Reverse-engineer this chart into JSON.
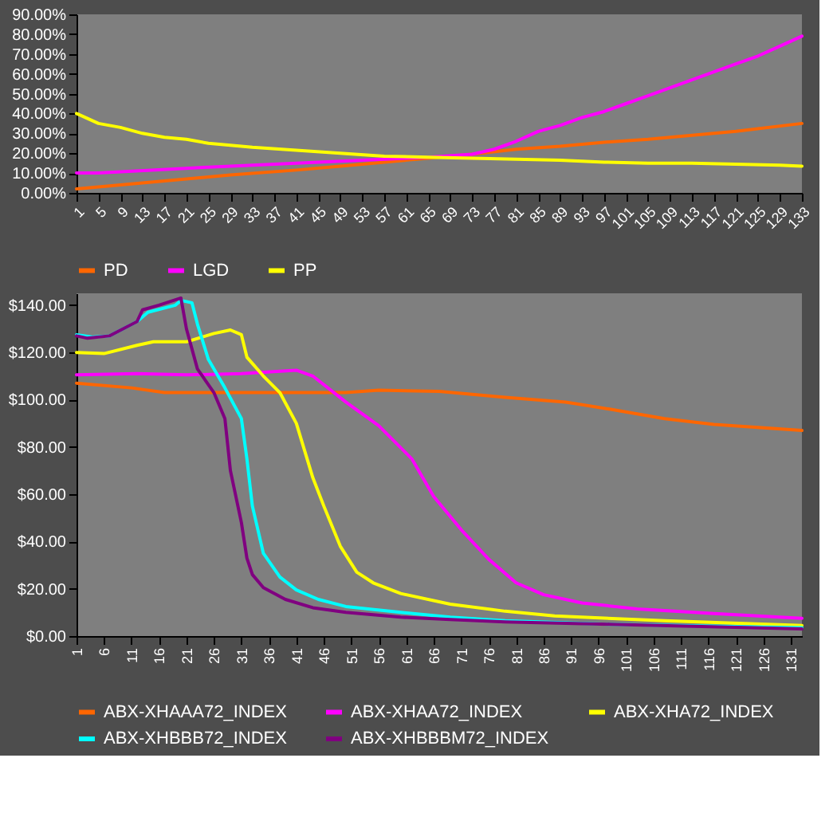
{
  "chart_data": [
    {
      "type": "line",
      "legend": "bottom",
      "grid": false,
      "marker": "none",
      "line_style": "solid",
      "xlim": [
        1,
        133
      ],
      "xticks": [
        1,
        5,
        9,
        13,
        17,
        21,
        25,
        29,
        33,
        37,
        41,
        45,
        49,
        53,
        57,
        61,
        65,
        69,
        73,
        77,
        81,
        85,
        89,
        93,
        97,
        101,
        105,
        109,
        113,
        117,
        121,
        125,
        129,
        133
      ],
      "ylim": [
        0,
        90
      ],
      "yticks": [
        {
          "value": 0,
          "label": "0.00%"
        },
        {
          "value": 10,
          "label": "10.00%"
        },
        {
          "value": 20,
          "label": "20.00%"
        },
        {
          "value": 30,
          "label": "30.00%"
        },
        {
          "value": 40,
          "label": "40.00%"
        },
        {
          "value": 50,
          "label": "50.00%"
        },
        {
          "value": 60,
          "label": "60.00%"
        },
        {
          "value": 70,
          "label": "70.00%"
        },
        {
          "value": 80,
          "label": "80.00%"
        },
        {
          "value": 90,
          "label": "90.00%"
        }
      ],
      "series": [
        {
          "name": "PD",
          "color": "#ff6600",
          "x": [
            1,
            5,
            13,
            25,
            29,
            41,
            49,
            57,
            65,
            73,
            81,
            89,
            97,
            105,
            113,
            121,
            133
          ],
          "values": [
            2,
            3,
            5,
            8,
            9,
            11.5,
            13.5,
            15.5,
            17.5,
            19.5,
            22,
            23.5,
            25.5,
            27,
            29,
            31,
            35
          ]
        },
        {
          "name": "LGD",
          "color": "#ff00ff",
          "x": [
            1,
            5,
            25,
            45,
            65,
            73,
            77,
            81,
            85,
            89,
            93,
            97,
            101,
            105,
            109,
            113,
            117,
            121,
            125,
            129,
            133
          ],
          "values": [
            10,
            10,
            13,
            15.5,
            18,
            19.5,
            22,
            26,
            31,
            34,
            38,
            41,
            45,
            49,
            53,
            57,
            61,
            65,
            69,
            74,
            79
          ]
        },
        {
          "name": "PP",
          "color": "#ffff00",
          "x": [
            1,
            5,
            9,
            13,
            17,
            21,
            25,
            33,
            41,
            49,
            57,
            65,
            73,
            81,
            89,
            97,
            105,
            113,
            121,
            129,
            133
          ],
          "values": [
            40,
            35,
            33,
            30,
            28,
            27,
            25,
            23,
            21.5,
            20,
            18.5,
            18,
            17.5,
            17,
            16.5,
            15.5,
            15,
            15,
            14.5,
            14,
            13.5
          ]
        }
      ]
    },
    {
      "type": "line",
      "legend": "bottom",
      "grid": false,
      "marker": "none",
      "line_style": "solid",
      "xlim": [
        1,
        133
      ],
      "xticks": [
        1,
        6,
        11,
        16,
        21,
        26,
        31,
        36,
        41,
        46,
        51,
        56,
        61,
        66,
        71,
        76,
        81,
        86,
        91,
        96,
        101,
        106,
        111,
        116,
        121,
        126,
        131
      ],
      "ylim": [
        0,
        145
      ],
      "yticks": [
        {
          "value": 0,
          "label": "$0.00"
        },
        {
          "value": 20,
          "label": "$20.00"
        },
        {
          "value": 40,
          "label": "$40.00"
        },
        {
          "value": 60,
          "label": "$60.00"
        },
        {
          "value": 80,
          "label": "$80.00"
        },
        {
          "value": 100,
          "label": "$100.00"
        },
        {
          "value": 120,
          "label": "$120.00"
        },
        {
          "value": 140,
          "label": "$140.00"
        }
      ],
      "series": [
        {
          "name": "ABX-XHAAA72_INDEX",
          "color": "#ff6600",
          "x": [
            1,
            11,
            17,
            50,
            56,
            67,
            79,
            90,
            98,
            108,
            117,
            133
          ],
          "values": [
            107,
            105,
            103,
            103,
            104,
            103.5,
            101,
            99,
            96,
            92,
            89.5,
            87
          ]
        },
        {
          "name": "ABX-XHAA72_INDEX",
          "color": "#ff00ff",
          "x": [
            1,
            12,
            21,
            31,
            41,
            44,
            50,
            56,
            62,
            66,
            71,
            76,
            81,
            86,
            93,
            103,
            117,
            133
          ],
          "values": [
            110.5,
            111,
            110.5,
            111,
            112.5,
            110,
            99,
            89,
            75,
            59,
            45,
            32.5,
            22.5,
            17.5,
            14,
            11.5,
            9.5,
            7.5
          ]
        },
        {
          "name": "ABX-XHA72_INDEX",
          "color": "#ffff00",
          "x": [
            1,
            6,
            12,
            15,
            21,
            26,
            29,
            31,
            32,
            35,
            38,
            41,
            44,
            46,
            49,
            52,
            55,
            60,
            69,
            79,
            88,
            108,
            133
          ],
          "values": [
            120,
            119.5,
            123,
            124.5,
            124.5,
            128,
            129.5,
            127.5,
            118,
            110,
            103,
            90,
            67,
            55,
            38,
            27,
            22.5,
            18,
            13.5,
            10.5,
            8.5,
            6.5,
            4.5
          ]
        },
        {
          "name": "ABX-XHBBB72_INDEX",
          "color": "#00ffff",
          "x": [
            1,
            4,
            7,
            12,
            14,
            19,
            20,
            22,
            23,
            25,
            28,
            31,
            32,
            33,
            35,
            38,
            41,
            45,
            50,
            60,
            69,
            79,
            98,
            133
          ],
          "values": [
            127.5,
            126.5,
            127,
            133,
            137,
            140,
            142,
            141,
            132,
            117,
            105,
            92,
            75,
            55,
            35,
            25,
            19.5,
            15.5,
            12.5,
            10,
            8,
            6.5,
            5,
            3.5
          ]
        },
        {
          "name": "ABX-XHBBBM72_INDEX",
          "color": "#800080",
          "x": [
            1,
            3,
            7,
            12,
            13,
            16,
            20,
            21,
            23,
            26,
            28,
            29,
            31,
            32,
            33,
            35,
            39,
            44,
            50,
            60,
            69,
            79,
            98,
            133
          ],
          "values": [
            127,
            126,
            127,
            133,
            138,
            140,
            143,
            130,
            113,
            103,
            92,
            70,
            48,
            33,
            26,
            20.5,
            15.5,
            12,
            10,
            8,
            7,
            6,
            5,
            3
          ]
        }
      ]
    }
  ]
}
